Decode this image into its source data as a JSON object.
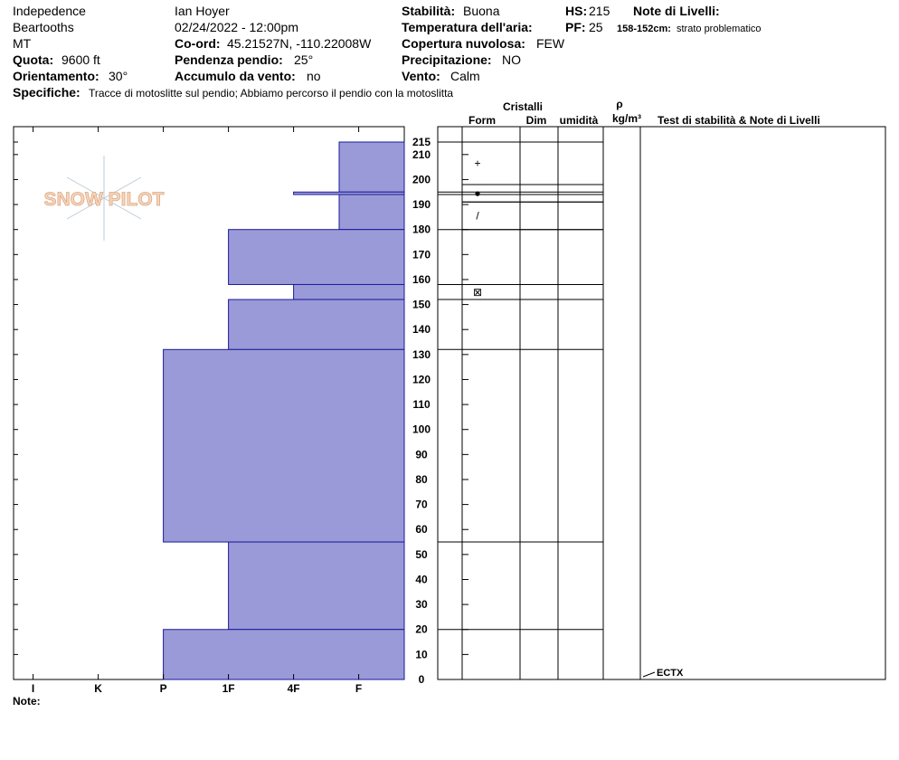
{
  "header": {
    "location": "Indepedence",
    "range": "Beartooths",
    "state": "MT",
    "observer": "Ian Hoyer",
    "datetime": "02/24/2022 - 12:00pm",
    "coord_label": "Co-ord:",
    "coord": "45.21527N, -110.22008W",
    "elevation_label": "Quota:",
    "elevation": "9600 ft",
    "aspect_label": "Orientamento:",
    "aspect": "30°",
    "slope_label": "Pendenza pendio:",
    "slope": "25°",
    "wind_loading_label": "Accumulo da vento:",
    "wind_loading": "no",
    "stability_label": "Stabilità:",
    "stability": "Buona",
    "air_temp_label": "Temperatura dell'aria:",
    "sky_label": "Copertura nuvolosa:",
    "sky": "FEW",
    "precip_label": "Precipitazione:",
    "precip": "NO",
    "wind_label": "Vento:",
    "wind": "Calm",
    "hs_label": "HS:",
    "hs": "215",
    "pf_label": "PF:",
    "pf": "25",
    "layer_notes_label": "Note di Livelli:",
    "layer_note_range": "158-152cm:",
    "layer_note": "strato problematico",
    "specifics_label": "Specifiche:",
    "specifics": "Tracce di motoslitte sul pendio; Abbiamo percorso il pendio con la motoslitta",
    "logo": "SNOW PILOT",
    "note_label": "Note:"
  },
  "table": {
    "crystals": "Cristalli",
    "form": "Form",
    "size": "Dim",
    "moisture": "umidità",
    "density_symbol": "ρ",
    "density_unit": "kg/m³",
    "tests_header": "Test di stabilità & Note di Livelli",
    "tests": [
      "ECTX"
    ]
  },
  "chart_data": {
    "type": "snow-profile",
    "ylim": [
      0,
      215
    ],
    "yticks": [
      0,
      10,
      20,
      30,
      40,
      50,
      60,
      70,
      80,
      90,
      100,
      110,
      120,
      130,
      140,
      150,
      160,
      170,
      180,
      190,
      200,
      210,
      215
    ],
    "xlim": [
      0.3,
      6.3
    ],
    "xticks": [
      {
        "value": 6,
        "label": "I"
      },
      {
        "value": 5,
        "label": "K"
      },
      {
        "value": 4,
        "label": "P"
      },
      {
        "value": 3,
        "label": "1F"
      },
      {
        "value": 2,
        "label": "4F"
      },
      {
        "value": 1,
        "label": "F"
      }
    ],
    "color": "#9a9ad8",
    "edge_color": "#1a1a9c",
    "layers": [
      {
        "top": 215,
        "bottom": 195,
        "hardness": 1.3
      },
      {
        "top": 195,
        "bottom": 194,
        "hardness": 2
      },
      {
        "top": 194,
        "bottom": 180,
        "hardness": 1.3
      },
      {
        "top": 180,
        "bottom": 158,
        "hardness": 3
      },
      {
        "top": 158,
        "bottom": 152,
        "hardness": 2
      },
      {
        "top": 152,
        "bottom": 132,
        "hardness": 3
      },
      {
        "top": 132,
        "bottom": 55,
        "hardness": 4
      },
      {
        "top": 55,
        "bottom": 20,
        "hardness": 3
      },
      {
        "top": 20,
        "bottom": 0,
        "hardness": 4
      }
    ],
    "grains": [
      {
        "top": 215,
        "bottom": 198,
        "form": "+"
      },
      {
        "top": 198,
        "bottom": 191,
        "form": "●"
      },
      {
        "top": 191,
        "bottom": 180,
        "form": "/"
      },
      {
        "top": 158,
        "bottom": 152,
        "form": "⊠"
      }
    ]
  }
}
